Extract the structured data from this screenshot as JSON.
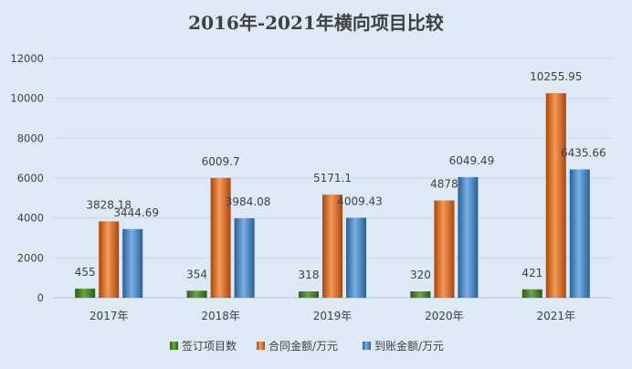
{
  "chart_data": {
    "type": "bar",
    "title": "2016年-2021年横向项目比较",
    "xlabel": "",
    "ylabel": "",
    "categories": [
      "2017年",
      "2018年",
      "2019年",
      "2020年",
      "2021年"
    ],
    "series": [
      {
        "name": "签订项目数",
        "values": [
          455,
          354,
          318,
          320,
          421
        ],
        "labels": [
          "455",
          "354",
          "318",
          "320",
          "421"
        ],
        "color": "#4e8a2a"
      },
      {
        "name": "合同金额/万元",
        "values": [
          3828.18,
          6009.7,
          5171.1,
          4878,
          10255.95
        ],
        "labels": [
          "3828.18",
          "6009.7",
          "5171.1",
          "4878",
          "10255.95"
        ],
        "color": "#e8762d"
      },
      {
        "name": "到账金额/万元",
        "values": [
          3444.69,
          3984.08,
          4009.43,
          6049.49,
          6435.66
        ],
        "labels": [
          "3444.69",
          "3984.08",
          "4009.43",
          "6049.49",
          "6435.66"
        ],
        "color": "#4f8fd0"
      }
    ],
    "yticks": [
      "0",
      "2000",
      "4000",
      "6000",
      "8000",
      "10000",
      "12000"
    ],
    "ylim": [
      0,
      12000
    ],
    "grid": true,
    "legend_position": "bottom"
  }
}
